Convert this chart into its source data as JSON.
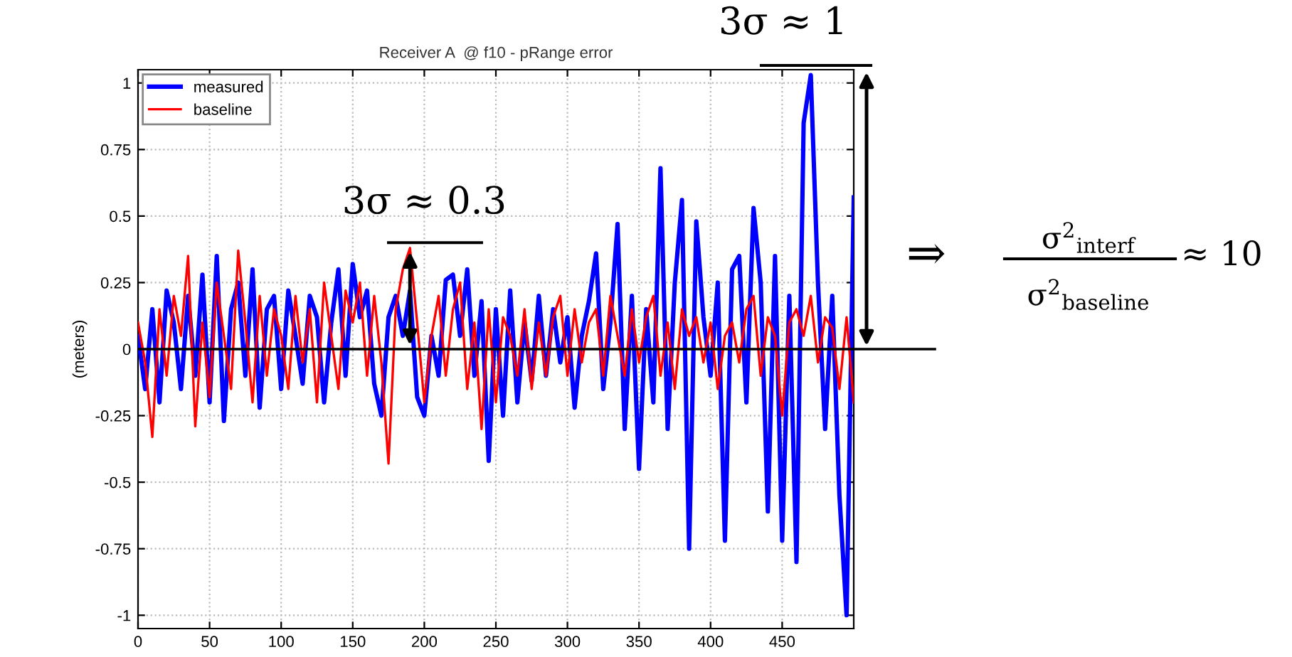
{
  "chart_data": {
    "type": "line",
    "title": "Receiver A  @ f10 - pRange error",
    "ylabel": "(meters)",
    "x": [
      0,
      5,
      10,
      15,
      20,
      25,
      30,
      35,
      40,
      45,
      50,
      55,
      60,
      65,
      70,
      75,
      80,
      85,
      90,
      95,
      100,
      105,
      110,
      115,
      120,
      125,
      130,
      135,
      140,
      145,
      150,
      155,
      160,
      165,
      170,
      175,
      180,
      185,
      190,
      195,
      200,
      205,
      210,
      215,
      220,
      225,
      230,
      235,
      240,
      245,
      250,
      255,
      260,
      265,
      270,
      275,
      280,
      285,
      290,
      295,
      300,
      305,
      310,
      315,
      320,
      325,
      330,
      335,
      340,
      345,
      350,
      355,
      360,
      365,
      370,
      375,
      380,
      385,
      390,
      395,
      400,
      405,
      410,
      415,
      420,
      425,
      430,
      435,
      440,
      445,
      450,
      455,
      460,
      465,
      470,
      475,
      480,
      485,
      490,
      495,
      500
    ],
    "series": [
      {
        "name": "measured",
        "color": "#0000ff",
        "values": [
          0.05,
          -0.15,
          0.15,
          -0.2,
          0.22,
          0.1,
          -0.15,
          0.2,
          -0.1,
          0.28,
          -0.2,
          0.35,
          -0.27,
          0.15,
          0.25,
          -0.1,
          0.3,
          -0.22,
          0.15,
          0.2,
          -0.15,
          0.22,
          0.05,
          -0.13,
          0.2,
          0.12,
          -0.2,
          0.1,
          0.3,
          -0.1,
          0.32,
          0.12,
          0.22,
          -0.13,
          -0.25,
          0.12,
          0.2,
          0.05,
          0.22,
          -0.18,
          -0.25,
          0.05,
          -0.1,
          0.26,
          0.28,
          0.05,
          0.3,
          -0.1,
          0.18,
          -0.42,
          0.15,
          -0.25,
          0.22,
          -0.2,
          0.1,
          -0.12,
          0.2,
          -0.1,
          0.15,
          -0.05,
          0.12,
          -0.22,
          0.05,
          0.18,
          0.36,
          -0.15,
          0.1,
          0.47,
          -0.3,
          0.2,
          -0.45,
          0.15,
          -0.2,
          0.68,
          -0.3,
          0.25,
          0.56,
          -0.75,
          0.48,
          0.12,
          -0.1,
          0.25,
          -0.72,
          0.3,
          0.35,
          -0.2,
          0.53,
          0.25,
          -0.61,
          0.35,
          -0.72,
          0.2,
          -0.8,
          0.85,
          1.03,
          0.25,
          -0.3,
          0.2,
          -0.55,
          -1.0,
          0.57
        ]
      },
      {
        "name": "baseline",
        "color": "#ff0000",
        "values": [
          0.1,
          -0.05,
          -0.33,
          0.15,
          -0.1,
          0.2,
          0.05,
          0.35,
          -0.29,
          0.1,
          -0.18,
          0.25,
          0.05,
          -0.15,
          0.37,
          0.1,
          -0.2,
          0.2,
          -0.1,
          0.15,
          0.05,
          -0.15,
          0.2,
          -0.05,
          0.15,
          -0.2,
          0.25,
          0.05,
          -0.15,
          0.22,
          0.1,
          0.25,
          -0.1,
          0.2,
          -0.05,
          -0.43,
          0.15,
          0.3,
          0.38,
          0.1,
          -0.2,
          0.05,
          0.2,
          -0.1,
          0.15,
          0.25,
          -0.15,
          0.1,
          -0.3,
          0.15,
          -0.2,
          0.12,
          0.05,
          -0.1,
          0.15,
          -0.15,
          0.1,
          -0.1,
          0.12,
          0.2,
          -0.1,
          0.15,
          -0.05,
          0.1,
          0.15,
          -0.1,
          0.2,
          0.05,
          -0.1,
          0.15,
          -0.05,
          0.12,
          0.2,
          -0.1,
          0.1,
          -0.15,
          0.15,
          0.05,
          0.12,
          -0.05,
          0.1,
          -0.15,
          0.05,
          0.1,
          -0.05,
          0.15,
          0.2,
          -0.1,
          0.12,
          0.05,
          -0.25,
          0.1,
          0.15,
          0.05,
          0.2,
          -0.05,
          0.12,
          0.08,
          -0.15,
          0.12,
          -0.2
        ]
      }
    ],
    "xlim": [
      0,
      500
    ],
    "xticks": [
      0,
      50,
      100,
      150,
      200,
      250,
      300,
      350,
      400,
      450
    ],
    "ylim": [
      -1.05,
      1.05
    ],
    "yticks": [
      -1,
      -0.75,
      -0.5,
      -0.25,
      0,
      0.25,
      0.5,
      0.75,
      1
    ],
    "grid": true,
    "legend": "top left",
    "line_style": "solid",
    "marker": "none",
    "ref_lines": [
      {
        "axis": "y",
        "value": 0,
        "color": "#000000",
        "line_style": "solid"
      }
    ],
    "annotations": [
      {
        "text": "3σ ≈ 0.3",
        "x": 190,
        "y": 0.38
      },
      "3σ ≈ 1",
      "⇒",
      "σ$^{2}$$_{interf}$",
      "σ$^{2}$$_{baseline}$",
      "≈ 10"
    ]
  }
}
